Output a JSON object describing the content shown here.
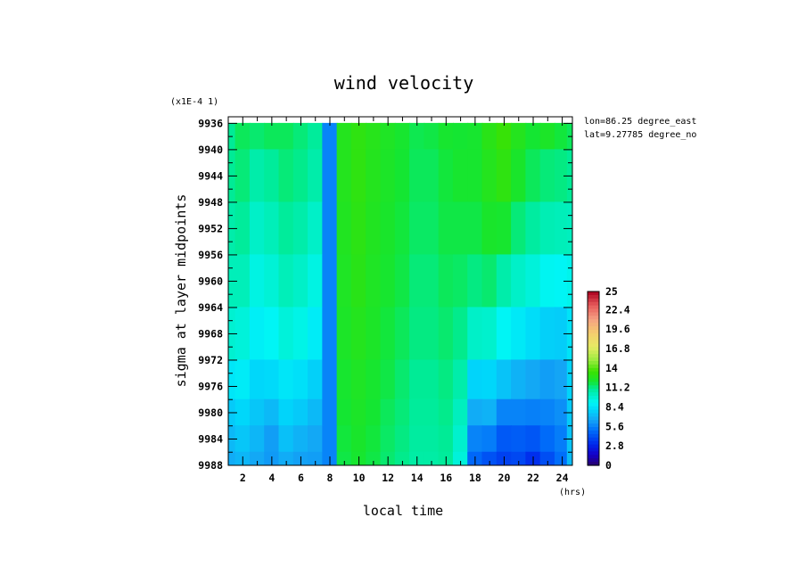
{
  "chart_data": {
    "type": "heatmap",
    "title": "wind velocity",
    "xlabel": "local time",
    "ylabel": "sigma at layer midpoints",
    "y_multiplier": "(x1E-4 1)",
    "x_unit": "(hrs)",
    "xlim": [
      1,
      24.7
    ],
    "ylim": [
      9988,
      9935
    ],
    "x_ticks": [
      "2",
      "4",
      "6",
      "8",
      "10",
      "12",
      "14",
      "16",
      "18",
      "20",
      "22",
      "24"
    ],
    "y_ticks": [
      "9936",
      "9940",
      "9944",
      "9948",
      "9952",
      "9956",
      "9960",
      "9964",
      "9968",
      "9972",
      "9976",
      "9980",
      "9984",
      "9988"
    ],
    "annotations": [
      "lon=86.25 degree_east",
      "lat=9.27785 degree_north"
    ],
    "colorbar": {
      "ticks": [
        "25",
        "22.4",
        "19.6",
        "16.8",
        "14",
        "11.2",
        "8.4",
        "5.6",
        "2.8",
        "0"
      ],
      "min": 0,
      "max": 25
    },
    "x": [
      1.0,
      2.0,
      3.0,
      4.0,
      5.0,
      6.0,
      7.0,
      8.0,
      9.0,
      10.0,
      11.0,
      12.0,
      13.0,
      14.0,
      15.0,
      16.0,
      17.0,
      18.0,
      19.0,
      20.0,
      21.0,
      22.0,
      23.0,
      24.0,
      24.7
    ],
    "y": [
      9936,
      9944,
      9952,
      9960,
      9968,
      9976,
      9980,
      9984,
      9988
    ],
    "values": [
      [
        11.0,
        11.6,
        11.4,
        11.6,
        11.6,
        11.3,
        10.9,
        5.6,
        12.6,
        13.0,
        12.7,
        12.4,
        12.1,
        11.7,
        11.8,
        12.1,
        12.0,
        12.1,
        12.8,
        13.3,
        12.6,
        12.0,
        12.3,
        11.9,
        11.6
      ],
      [
        11.0,
        11.3,
        10.6,
        10.9,
        11.3,
        11.1,
        10.6,
        5.6,
        12.6,
        13.0,
        12.6,
        12.3,
        12.0,
        11.6,
        11.6,
        11.9,
        12.1,
        12.1,
        12.6,
        13.0,
        12.2,
        11.6,
        11.3,
        11.2,
        11.0
      ],
      [
        10.6,
        10.9,
        10.0,
        10.3,
        10.9,
        10.6,
        10.0,
        5.6,
        12.5,
        12.9,
        12.5,
        12.2,
        11.9,
        11.5,
        11.5,
        11.8,
        11.8,
        11.8,
        12.2,
        12.1,
        11.3,
        10.8,
        10.4,
        10.3,
        10.2
      ],
      [
        10.3,
        10.3,
        9.4,
        9.7,
        10.3,
        10.0,
        9.4,
        5.6,
        12.4,
        12.8,
        12.4,
        12.1,
        11.8,
        11.3,
        11.3,
        11.6,
        11.5,
        11.2,
        11.4,
        10.6,
        10.0,
        9.6,
        9.1,
        9.0,
        9.2
      ],
      [
        9.8,
        9.6,
        8.8,
        9.0,
        9.6,
        9.3,
        8.7,
        5.6,
        12.3,
        12.6,
        12.3,
        11.9,
        11.6,
        11.2,
        11.2,
        11.4,
        11.1,
        10.0,
        9.9,
        9.0,
        8.6,
        8.2,
        7.8,
        7.7,
        8.4
      ],
      [
        8.5,
        8.7,
        8.0,
        8.1,
        8.5,
        8.3,
        7.8,
        5.6,
        12.1,
        12.4,
        12.1,
        11.8,
        11.4,
        11.0,
        11.0,
        11.2,
        10.6,
        7.9,
        8.0,
        7.4,
        6.9,
        6.6,
        6.3,
        6.5,
        7.9
      ],
      [
        7.6,
        8.0,
        7.5,
        7.1,
        7.9,
        7.6,
        7.1,
        5.6,
        12.0,
        12.3,
        12.0,
        11.6,
        11.3,
        10.9,
        10.9,
        11.1,
        10.2,
        6.7,
        6.9,
        5.6,
        5.6,
        5.5,
        5.6,
        5.9,
        7.6
      ],
      [
        7.1,
        7.5,
        7.0,
        6.3,
        7.3,
        6.9,
        6.6,
        5.6,
        11.9,
        12.2,
        11.9,
        11.5,
        11.2,
        10.8,
        10.8,
        11.0,
        9.9,
        5.6,
        5.4,
        4.4,
        4.5,
        4.3,
        4.9,
        5.4,
        7.4
      ],
      [
        6.7,
        7.0,
        6.6,
        6.2,
        6.7,
        6.4,
        6.3,
        5.6,
        11.8,
        12.1,
        11.8,
        11.4,
        11.1,
        10.7,
        10.7,
        10.9,
        9.6,
        4.8,
        4.2,
        3.7,
        3.9,
        3.2,
        4.1,
        5.0,
        7.2
      ]
    ]
  }
}
